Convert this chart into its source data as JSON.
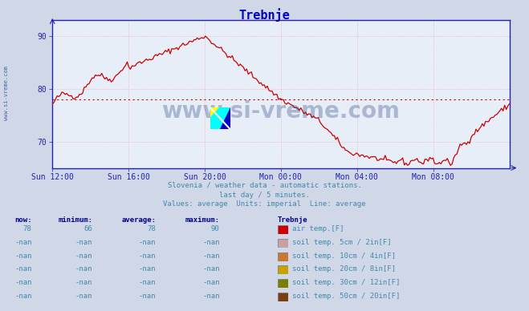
{
  "title": "Trebnje",
  "title_color": "#0000cc",
  "bg_color": "#d0d8e8",
  "plot_bg_color": "#e8eef8",
  "grid_color": "#e8a0a0",
  "axis_color": "#2222aa",
  "xlabel_ticks": [
    "Sun 12:00",
    "Sun 16:00",
    "Sun 20:00",
    "Mon 00:00",
    "Mon 04:00",
    "Mon 08:00"
  ],
  "tick_positions": [
    0,
    4,
    8,
    12,
    16,
    20
  ],
  "xlim": [
    0,
    24
  ],
  "ylim": [
    65,
    93
  ],
  "yticks": [
    70,
    80,
    90
  ],
  "avg_line_value": 78,
  "avg_line_color": "#cc0000",
  "line_color": "#cc0000",
  "subtitle1": "Slovenia / weather data - automatic stations.",
  "subtitle2": "last day / 5 minutes.",
  "subtitle3": "Values: average  Units: imperial  Line: average",
  "subtitle_color": "#4488aa",
  "table_header": [
    "now:",
    "minimum:",
    "average:",
    "maximum:",
    "Trebnje"
  ],
  "table_header_color": "#000088",
  "table_rows": [
    {
      "now": "78",
      "min": "66",
      "avg": "78",
      "max": "90",
      "color": "#cc0000",
      "label": "air temp.[F]"
    },
    {
      "now": "-nan",
      "min": "-nan",
      "avg": "-nan",
      "max": "-nan",
      "color": "#c8a0a0",
      "label": "soil temp. 5cm / 2in[F]"
    },
    {
      "now": "-nan",
      "min": "-nan",
      "avg": "-nan",
      "max": "-nan",
      "color": "#c87832",
      "label": "soil temp. 10cm / 4in[F]"
    },
    {
      "now": "-nan",
      "min": "-nan",
      "avg": "-nan",
      "max": "-nan",
      "color": "#c8a000",
      "label": "soil temp. 20cm / 8in[F]"
    },
    {
      "now": "-nan",
      "min": "-nan",
      "avg": "-nan",
      "max": "-nan",
      "color": "#788000",
      "label": "soil temp. 30cm / 12in[F]"
    },
    {
      "now": "-nan",
      "min": "-nan",
      "avg": "-nan",
      "max": "-nan",
      "color": "#784010",
      "label": "soil temp. 50cm / 20in[F]"
    }
  ],
  "watermark": "www.si-vreme.com",
  "watermark_color": "#1a3a7a",
  "side_text": "www.si-vreme.com",
  "side_text_color": "#4466aa",
  "icon_colors": {
    "yellow": "#ffff00",
    "cyan": "#00ffff",
    "blue": "#0000cc"
  },
  "font_family": "monospace"
}
